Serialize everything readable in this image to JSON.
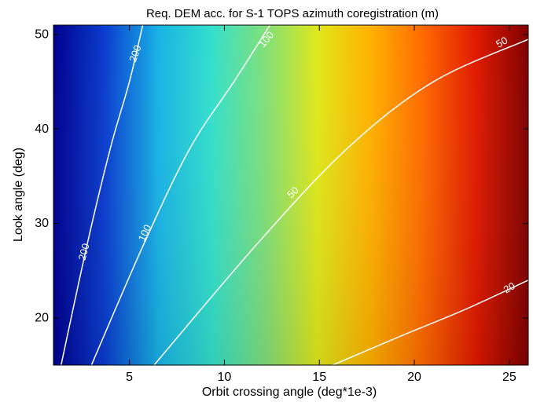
{
  "chart_data": {
    "type": "heatmap",
    "title": "Req. DEM acc. for S-1 TOPS azimuth coregistration (m)",
    "xlabel": "Orbit crossing angle (deg*1e-3)",
    "ylabel": "Look angle (deg)",
    "xlim": [
      1,
      26
    ],
    "ylim": [
      15,
      51
    ],
    "xticks": [
      5,
      10,
      15,
      20,
      25
    ],
    "yticks": [
      20,
      30,
      40,
      50
    ],
    "colormap": [
      "#00008f",
      "#0a3fd0",
      "#19b3e6",
      "#33e0cc",
      "#7fe07a",
      "#e0e81a",
      "#ffb200",
      "#ff6a00",
      "#e01a00",
      "#800000"
    ],
    "contours": [
      {
        "level": "200",
        "points": [
          [
            1.4,
            15
          ],
          [
            2.8,
            28
          ],
          [
            4.0,
            38
          ],
          [
            5.0,
            45
          ],
          [
            5.7,
            51
          ]
        ],
        "labels": [
          {
            "text": "200",
            "x": 2.6,
            "y": 27,
            "angle": -75
          },
          {
            "text": "200",
            "x": 5.3,
            "y": 48,
            "angle": -70
          }
        ]
      },
      {
        "level": "100",
        "points": [
          [
            3.0,
            15
          ],
          [
            5.8,
            28
          ],
          [
            8.2,
            38
          ],
          [
            10.5,
            45
          ],
          [
            12.4,
            51
          ]
        ],
        "labels": [
          {
            "text": "100",
            "x": 5.8,
            "y": 29,
            "angle": -65
          },
          {
            "text": "100",
            "x": 12.2,
            "y": 49.5,
            "angle": -50
          }
        ]
      },
      {
        "level": "50",
        "points": [
          [
            6.3,
            15
          ],
          [
            11.8,
            28
          ],
          [
            16.5,
            38
          ],
          [
            21.0,
            45
          ],
          [
            26.0,
            49.5
          ]
        ],
        "labels": [
          {
            "text": "50",
            "x": 13.6,
            "y": 33.3,
            "angle": -45
          },
          {
            "text": "50",
            "x": 24.6,
            "y": 49.2,
            "angle": -30
          }
        ]
      },
      {
        "level": "20",
        "points": [
          [
            15.7,
            15
          ],
          [
            19.2,
            18
          ],
          [
            22.8,
            21
          ],
          [
            26.0,
            24
          ]
        ],
        "labels": [
          {
            "text": "20",
            "x": 25.0,
            "y": 23.2,
            "angle": -30
          }
        ]
      }
    ]
  }
}
